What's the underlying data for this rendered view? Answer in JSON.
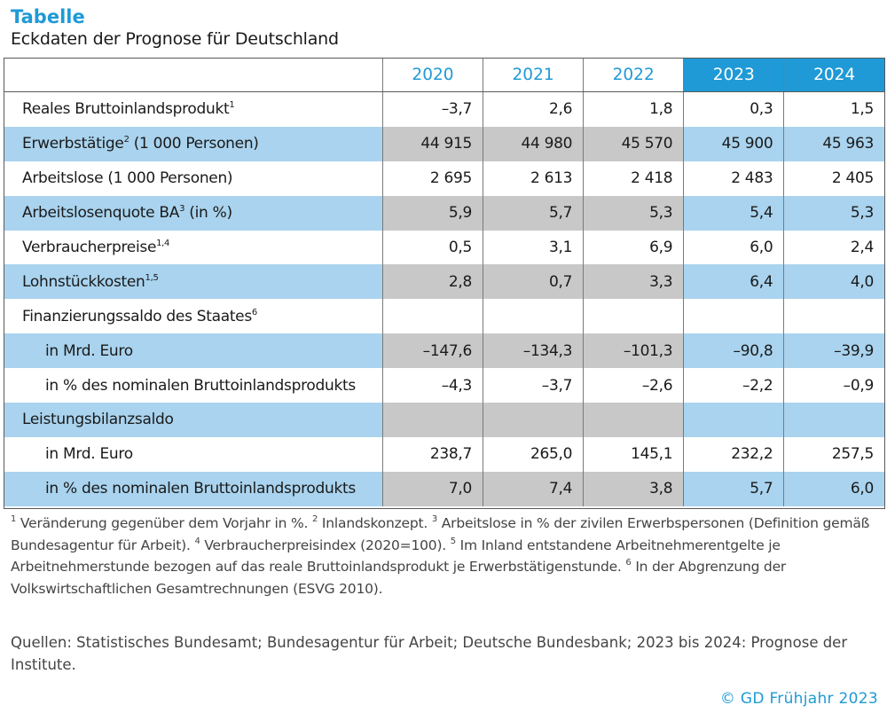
{
  "title": "Tabelle",
  "subtitle": "Eckdaten der Prognose für Deutschland",
  "years": [
    "2020",
    "2021",
    "2022",
    "2023",
    "2024"
  ],
  "rows": [
    {
      "label": "Reales Bruttoinlandsprodukt",
      "sup": "1",
      "values": [
        "–3,7",
        "2,6",
        "1,8",
        "0,3",
        "1,5"
      ]
    },
    {
      "label": "Erwerbstätige",
      "sup": "2",
      "suffix": " (1 000 Personen)",
      "values": [
        "44 915",
        "44 980",
        "45 570",
        "45 900",
        "45 963"
      ]
    },
    {
      "label": "Arbeitslose (1 000 Personen)",
      "values": [
        "2 695",
        "2 613",
        "2 418",
        "2 483",
        "2 405"
      ]
    },
    {
      "label": "Arbeitslosenquote BA",
      "sup": "3",
      "suffix": " (in %)",
      "values": [
        "5,9",
        "5,7",
        "5,3",
        "5,4",
        "5,3"
      ]
    },
    {
      "label": "Verbraucherpreise",
      "sup": "1,4",
      "values": [
        "0,5",
        "3,1",
        "6,9",
        "6,0",
        "2,4"
      ]
    },
    {
      "label": "Lohnstückkosten",
      "sup": "1,5",
      "values": [
        "2,8",
        "0,7",
        "3,3",
        "6,4",
        "4,0"
      ]
    },
    {
      "label": "Finanzierungssaldo des Staates",
      "sup": "6",
      "values": [
        "",
        "",
        "",
        "",
        ""
      ]
    },
    {
      "label": "in Mrd. Euro",
      "indent": true,
      "values": [
        "–147,6",
        "–134,3",
        "–101,3",
        "–90,8",
        "–39,9"
      ]
    },
    {
      "label": "in % des nominalen Bruttoinlandsprodukts",
      "indent": true,
      "values": [
        "–4,3",
        "–3,7",
        "–2,6",
        "–2,2",
        "–0,9"
      ]
    },
    {
      "label": "Leistungsbilanzsaldo",
      "values": [
        "",
        "",
        "",
        "",
        ""
      ]
    },
    {
      "label": "in Mrd. Euro",
      "indent": true,
      "values": [
        "238,7",
        "265,0",
        "145,1",
        "232,2",
        "257,5"
      ]
    },
    {
      "label": "in % des nominalen Bruttoinlandsprodukts",
      "indent": true,
      "values": [
        "7,0",
        "7,4",
        "3,8",
        "5,7",
        "6,0"
      ]
    }
  ],
  "footnotes": [
    {
      "sup": "1",
      "text": "Veränderung gegenüber dem Vorjahr in %."
    },
    {
      "sup": "2",
      "text": "Inlandskonzept."
    },
    {
      "sup": "3",
      "text": "Arbeitslose in % der zivilen Erwerbspersonen (Definition gemäß Bundesagentur für Arbeit)."
    },
    {
      "sup": "4",
      "text": "Verbraucherpreisindex (2020=100)."
    },
    {
      "sup": "5",
      "text": "Im Inland entstandene Arbeitnehmerentgelte je Arbeitnehmerstunde bezogen auf das reale Bruttoinlandsprodukt je Erwerbstätigenstunde."
    },
    {
      "sup": "6",
      "text": "In der Abgrenzung der Volkswirtschaftlichen Gesamtrechnungen (ESVG 2010)."
    }
  ],
  "sources": "Quellen: Statistisches Bundesamt; Bundesagentur für Arbeit; Deutsche Bundesbank; 2023 bis 2024: Prognose der Institute.",
  "copyright": "© GD Frühjahr 2023",
  "colors": {
    "accent": "#1f9ad6",
    "shade_blue": "#a9d3ee",
    "shade_grey": "#c8c8c8"
  }
}
